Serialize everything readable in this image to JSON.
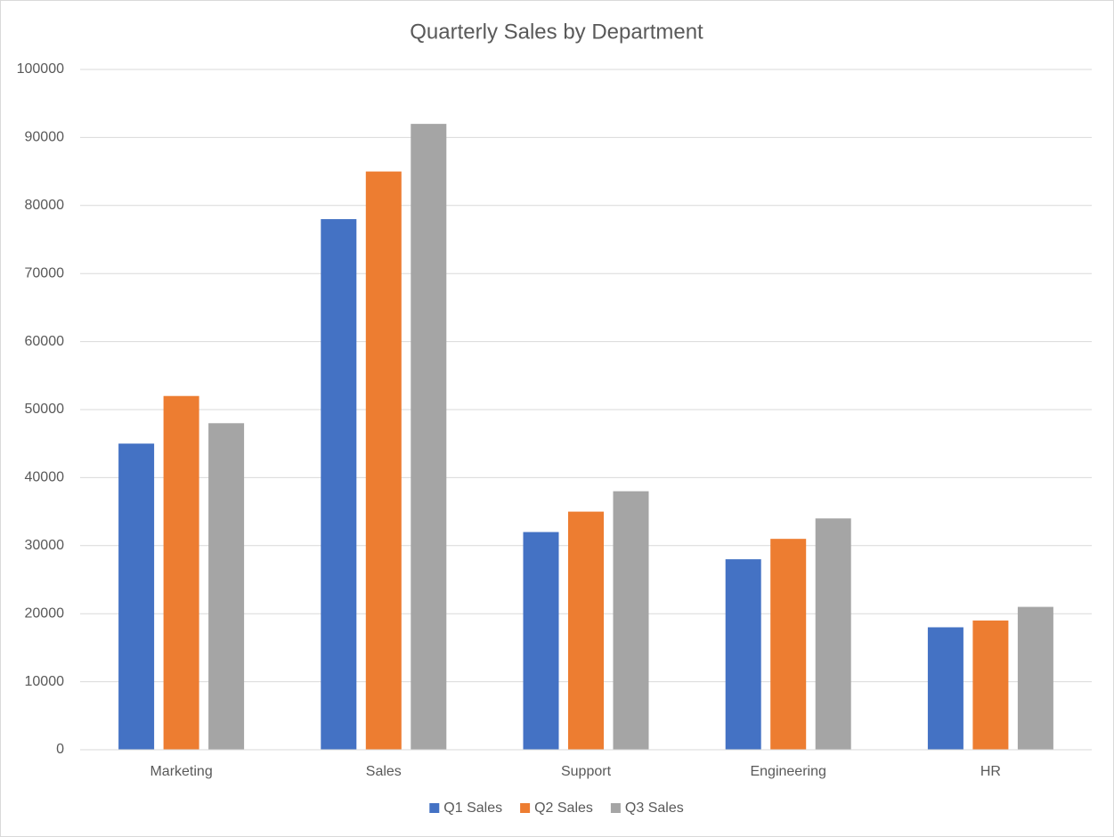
{
  "chart_data": {
    "type": "bar",
    "title": "Quarterly Sales by Department",
    "categories": [
      "Marketing",
      "Sales",
      "Support",
      "Engineering",
      "HR"
    ],
    "series": [
      {
        "name": "Q1 Sales",
        "color": "#4472c4",
        "values": [
          45000,
          78000,
          32000,
          28000,
          18000
        ]
      },
      {
        "name": "Q2 Sales",
        "color": "#ed7d31",
        "values": [
          52000,
          85000,
          35000,
          31000,
          19000
        ]
      },
      {
        "name": "Q3 Sales",
        "color": "#a5a5a5",
        "values": [
          48000,
          92000,
          38000,
          34000,
          21000
        ]
      }
    ],
    "ylim": [
      0,
      100000
    ],
    "yticks": [
      0,
      10000,
      20000,
      30000,
      40000,
      50000,
      60000,
      70000,
      80000,
      90000,
      100000
    ],
    "grid": true,
    "legend": "bottom"
  }
}
